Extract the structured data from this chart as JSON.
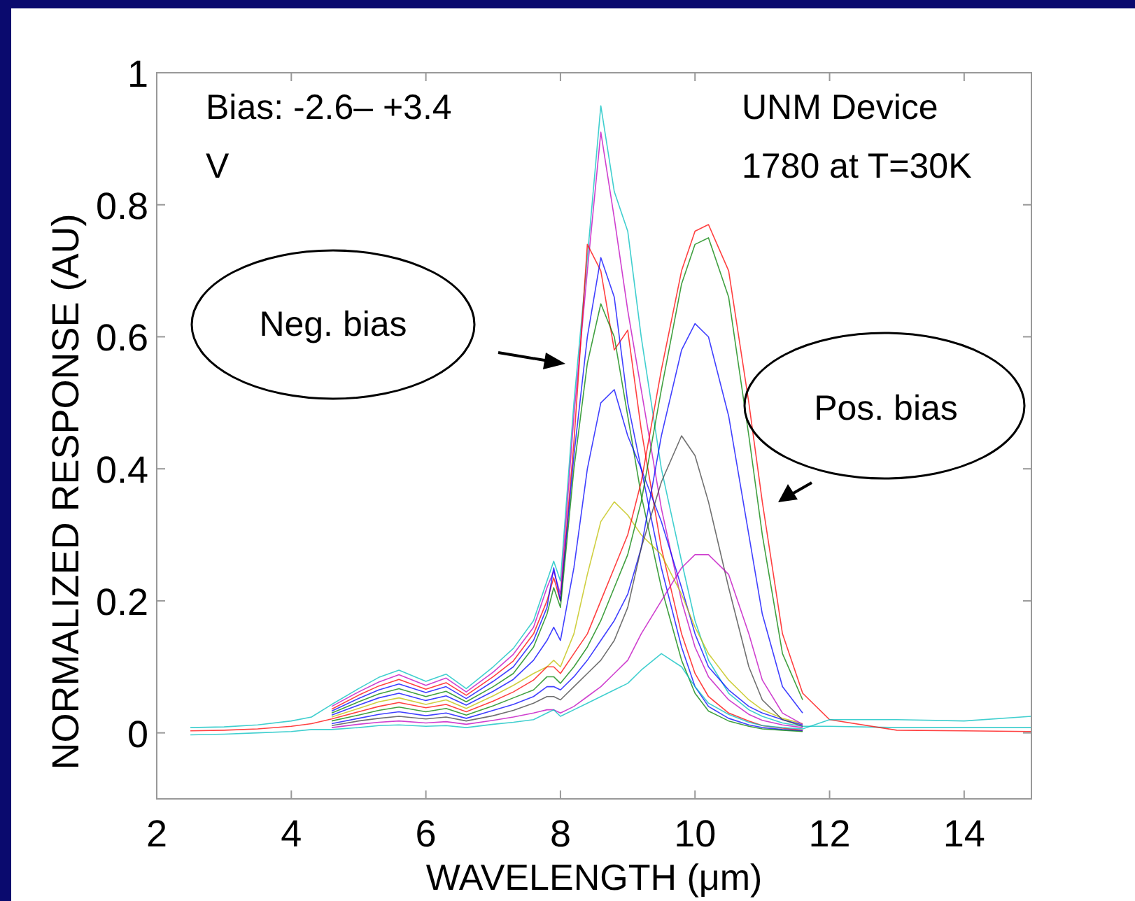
{
  "chart_data": {
    "type": "line",
    "xlabel": "WAVELENGTH (μm)",
    "ylabel": "NORMALIZED RESPONSE (AU)",
    "annotations": [
      "Bias: -2.6– +3.4\nV",
      "UNM Device\n1780 at T=30K",
      "Neg. bias",
      "Pos. bias"
    ],
    "x": [
      2.5,
      3,
      3.5,
      4,
      4.3,
      4.6,
      5,
      5.3,
      5.6,
      6,
      6.3,
      6.6,
      7,
      7.3,
      7.6,
      7.8,
      7.9,
      8,
      8.2,
      8.4,
      8.6,
      8.8,
      9,
      9.2,
      9.5,
      9.8,
      10,
      10.2,
      10.5,
      10.8,
      11,
      11.3,
      11.6,
      12,
      13,
      14,
      15
    ],
    "xlim": [
      2,
      15
    ],
    "xticks": [
      2,
      4,
      6,
      8,
      10,
      12,
      14
    ],
    "ylim": [
      -0.1,
      1
    ],
    "yticks": [
      0,
      0.2,
      0.4,
      0.6,
      0.8,
      1
    ],
    "grid": false,
    "line_style": "solid",
    "marker": "none",
    "series": [
      {
        "color": "#00bfbf",
        "values": [
          0.008,
          0.009,
          0.012,
          0.018,
          0.024,
          0.043,
          0.067,
          0.084,
          0.095,
          0.078,
          0.089,
          0.067,
          0.1,
          0.128,
          0.17,
          0.23,
          0.26,
          0.23,
          0.5,
          0.72,
          0.95,
          0.82,
          0.76,
          0.6,
          0.4,
          0.26,
          0.17,
          0.11,
          0.06,
          0.035,
          0.025,
          0.015,
          0.01,
          0.01,
          0.008,
          0.008,
          0.008
        ]
      },
      {
        "color": "#bf00bf",
        "values": [
          null,
          null,
          null,
          null,
          null,
          0.04,
          0.062,
          0.077,
          0.088,
          0.072,
          0.083,
          0.062,
          0.092,
          0.119,
          0.16,
          0.22,
          0.245,
          0.21,
          0.48,
          0.7,
          0.91,
          0.78,
          0.64,
          0.52,
          0.34,
          0.2,
          0.13,
          0.085,
          0.05,
          0.028,
          0.019,
          0.012,
          0.008,
          null,
          null,
          null,
          null
        ]
      },
      {
        "color": "#ff0000",
        "values": [
          null,
          null,
          null,
          null,
          null,
          0.036,
          0.057,
          0.071,
          0.081,
          0.066,
          0.076,
          0.057,
          0.085,
          0.109,
          0.15,
          0.2,
          0.235,
          0.2,
          0.44,
          0.74,
          0.7,
          0.58,
          0.61,
          0.46,
          0.28,
          0.15,
          0.09,
          0.055,
          0.03,
          0.018,
          0.011,
          0.007,
          0.004,
          null,
          null,
          null,
          null
        ]
      },
      {
        "color": "#0000ff",
        "values": [
          null,
          null,
          null,
          null,
          null,
          0.033,
          0.052,
          0.065,
          0.074,
          0.061,
          0.07,
          0.052,
          0.078,
          0.1,
          0.14,
          0.19,
          0.25,
          0.2,
          0.42,
          0.6,
          0.72,
          0.66,
          0.5,
          0.4,
          0.25,
          0.13,
          0.07,
          0.04,
          0.022,
          0.012,
          0.008,
          0.005,
          0.003,
          null,
          null,
          null,
          null
        ]
      },
      {
        "color": "#008000",
        "values": [
          null,
          null,
          null,
          null,
          null,
          0.03,
          0.047,
          0.059,
          0.067,
          0.055,
          0.063,
          0.047,
          0.07,
          0.09,
          0.13,
          0.18,
          0.22,
          0.19,
          0.4,
          0.56,
          0.65,
          0.6,
          0.48,
          0.36,
          0.22,
          0.11,
          0.06,
          0.033,
          0.018,
          0.01,
          0.006,
          0.004,
          0.002,
          null,
          null,
          null,
          null
        ]
      },
      {
        "color": "#0000ff",
        "values": [
          null,
          null,
          null,
          null,
          null,
          0.027,
          0.042,
          0.053,
          0.06,
          0.049,
          0.056,
          0.042,
          0.063,
          0.081,
          0.11,
          0.14,
          0.16,
          0.14,
          0.25,
          0.4,
          0.5,
          0.52,
          0.45,
          0.4,
          0.32,
          0.22,
          0.15,
          0.1,
          0.065,
          0.04,
          0.03,
          0.02,
          0.012,
          null,
          null,
          null,
          null
        ]
      },
      {
        "color": "#bfbf00",
        "values": [
          null,
          null,
          null,
          null,
          null,
          0.024,
          0.037,
          0.047,
          0.053,
          0.043,
          0.05,
          0.037,
          0.056,
          0.072,
          0.09,
          0.1,
          0.11,
          0.1,
          0.15,
          0.24,
          0.32,
          0.35,
          0.33,
          0.3,
          0.27,
          0.21,
          0.16,
          0.12,
          0.08,
          0.05,
          0.035,
          0.022,
          0.014,
          null,
          null,
          null,
          null
        ]
      },
      {
        "color": "#ff0000",
        "values": [
          0.003,
          0.004,
          0.006,
          0.01,
          0.014,
          0.021,
          0.032,
          0.04,
          0.046,
          0.038,
          0.043,
          0.032,
          0.048,
          0.062,
          0.08,
          0.1,
          0.1,
          0.09,
          0.12,
          0.15,
          0.2,
          0.25,
          0.3,
          0.38,
          0.55,
          0.7,
          0.76,
          0.77,
          0.7,
          0.5,
          0.35,
          0.15,
          0.06,
          0.02,
          0.004,
          0.003,
          0.002
        ]
      },
      {
        "color": "#008000",
        "values": [
          null,
          null,
          null,
          null,
          null,
          0.018,
          0.027,
          0.034,
          0.039,
          0.032,
          0.037,
          0.027,
          0.041,
          0.053,
          0.065,
          0.085,
          0.085,
          0.075,
          0.1,
          0.13,
          0.17,
          0.22,
          0.27,
          0.35,
          0.52,
          0.68,
          0.74,
          0.75,
          0.66,
          0.45,
          0.3,
          0.12,
          0.05,
          null,
          null,
          null,
          null
        ]
      },
      {
        "color": "#0000ff",
        "values": [
          null,
          null,
          null,
          null,
          null,
          0.014,
          0.022,
          0.028,
          0.032,
          0.026,
          0.03,
          0.022,
          0.034,
          0.043,
          0.055,
          0.07,
          0.07,
          0.065,
          0.085,
          0.11,
          0.14,
          0.17,
          0.21,
          0.28,
          0.45,
          0.58,
          0.62,
          0.6,
          0.48,
          0.3,
          0.18,
          0.07,
          0.03,
          null,
          null,
          null,
          null
        ]
      },
      {
        "color": "#404040",
        "values": [
          null,
          null,
          null,
          null,
          null,
          0.011,
          0.018,
          0.022,
          0.025,
          0.021,
          0.024,
          0.018,
          0.026,
          0.034,
          0.045,
          0.055,
          0.055,
          0.05,
          0.07,
          0.09,
          0.11,
          0.14,
          0.19,
          0.28,
          0.38,
          0.45,
          0.42,
          0.35,
          0.22,
          0.1,
          0.05,
          0.02,
          0.01,
          null,
          null,
          null,
          null
        ]
      },
      {
        "color": "#bf00bf",
        "values": [
          null,
          null,
          null,
          null,
          null,
          0.008,
          0.013,
          0.016,
          0.018,
          0.015,
          0.017,
          0.013,
          0.019,
          0.024,
          0.03,
          0.035,
          0.035,
          0.03,
          0.04,
          0.055,
          0.07,
          0.09,
          0.11,
          0.15,
          0.2,
          0.25,
          0.27,
          0.27,
          0.24,
          0.15,
          0.08,
          0.03,
          0.013,
          null,
          null,
          null,
          null
        ]
      },
      {
        "color": "#00bfbf",
        "values": [
          -0.003,
          -0.002,
          0,
          0.002,
          0.005,
          0.005,
          0.008,
          0.011,
          0.012,
          0.01,
          0.011,
          0.008,
          0.013,
          0.016,
          0.02,
          0.03,
          0.035,
          0.025,
          0.035,
          0.045,
          0.055,
          0.065,
          0.075,
          0.095,
          0.12,
          0.1,
          0.07,
          0.045,
          0.028,
          0.016,
          0.011,
          0.008,
          0.006,
          0.02,
          0.02,
          0.018,
          0.025
        ]
      }
    ]
  }
}
